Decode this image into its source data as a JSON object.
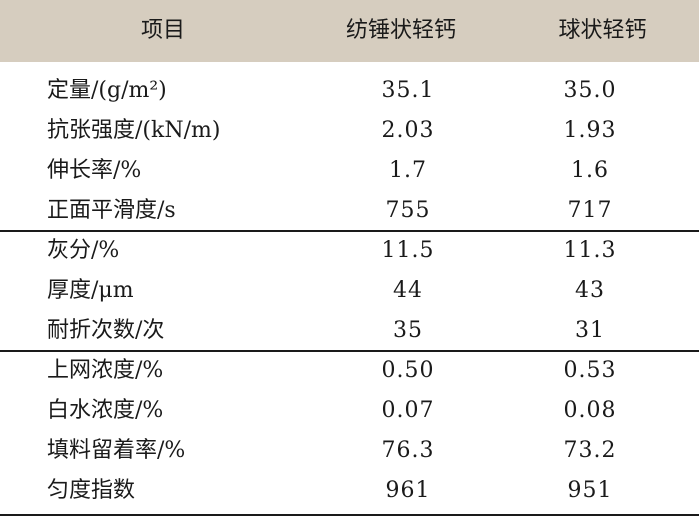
{
  "header": {
    "col1": "项目",
    "col2": "纺锤状轻钙",
    "col3": "球状轻钙"
  },
  "rows": [
    {
      "label": "定量/(g/m²)",
      "v1": "35.1",
      "v2": "35.0"
    },
    {
      "label": "抗张强度/(kN/m)",
      "v1": "2.03",
      "v2": "1.93"
    },
    {
      "label": "伸长率/%",
      "v1": "1.7",
      "v2": "1.6"
    },
    {
      "label": "正面平滑度/s",
      "v1": "755",
      "v2": "717"
    },
    {
      "label": "灰分/%",
      "v1": "11.5",
      "v2": "11.3"
    },
    {
      "label": "厚度/μm",
      "v1": "44",
      "v2": "43"
    },
    {
      "label": "耐折次数/次",
      "v1": "35",
      "v2": "31"
    },
    {
      "label": "上网浓度/%",
      "v1": "0.50",
      "v2": "0.53"
    },
    {
      "label": "白水浓度/%",
      "v1": "0.07",
      "v2": "0.08"
    },
    {
      "label": "填料留着率/%",
      "v1": "76.3",
      "v2": "73.2"
    },
    {
      "label": "匀度指数",
      "v1": "961",
      "v2": "951"
    }
  ],
  "colors": {
    "header_background": "#d6cdbf",
    "text": "#1a1a1a",
    "rule": "#1a1a1a"
  }
}
